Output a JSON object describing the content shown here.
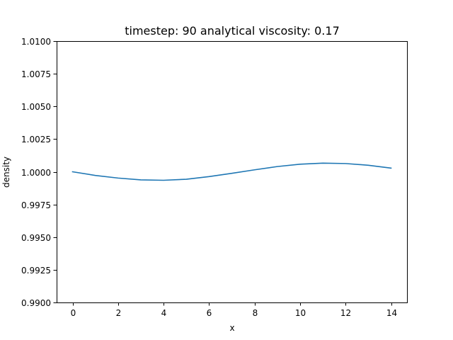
{
  "chart_data": {
    "type": "line",
    "title": "timestep: 90 analytical viscosity: 0.17",
    "xlabel": "x",
    "ylabel": "density",
    "xlim": [
      -0.7,
      14.7
    ],
    "ylim": [
      0.99,
      1.01
    ],
    "x_ticks": [
      0,
      2,
      4,
      6,
      8,
      10,
      12,
      14
    ],
    "x_tick_labels": [
      "0",
      "2",
      "4",
      "6",
      "8",
      "10",
      "12",
      "14"
    ],
    "y_ticks": [
      0.99,
      0.9925,
      0.995,
      0.9975,
      1.0,
      1.0025,
      1.005,
      1.0075,
      1.01
    ],
    "y_tick_labels": [
      "0.9900",
      "0.9925",
      "0.9950",
      "0.9975",
      "1.0000",
      "1.0025",
      "1.0050",
      "1.0075",
      "1.0100"
    ],
    "grid": false,
    "series": [
      {
        "color": "#1f77b4",
        "x": [
          0,
          1,
          2,
          3,
          4,
          5,
          6,
          7,
          8,
          9,
          10,
          11,
          12,
          13,
          14
        ],
        "y": [
          1.0,
          0.99972,
          0.99952,
          0.99938,
          0.99935,
          0.99943,
          0.99963,
          0.99988,
          1.00015,
          1.0004,
          1.00058,
          1.00066,
          1.00063,
          1.0005,
          1.00028
        ]
      }
    ]
  }
}
